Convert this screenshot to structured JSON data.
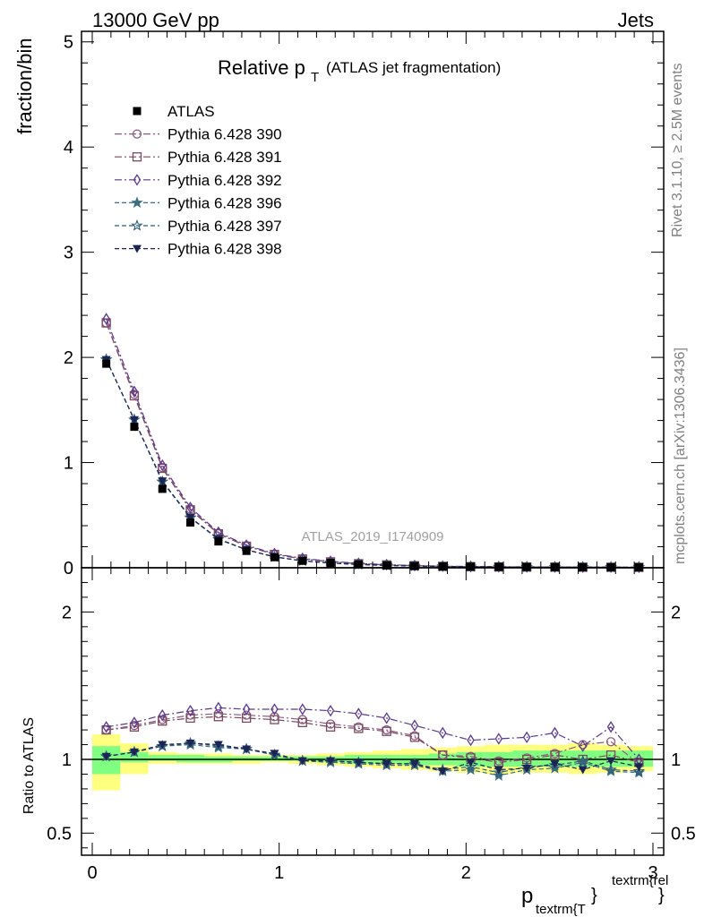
{
  "header": {
    "left": "13000 GeV pp",
    "right": "Jets"
  },
  "side_text": {
    "rivet": "Rivet 3.1.10, ≥ 2.5M events",
    "mcplots": "mcplots.cern.ch [arXiv:1306.3436]"
  },
  "chart_data": {
    "type": "line",
    "title": "Relative p",
    "title_sub": "T",
    "title_suffix": "(ATLAS jet fragmentation)",
    "analysis_id": "ATLAS_2019_I1740909",
    "ylabel": "fraction/bin",
    "ratio_ylabel": "Ratio to ATLAS",
    "xlabel_main": "p",
    "xlabel_sub": "textrm{T",
    "xlabel_brace": "}",
    "xlabel_sup": "textrm{rel",
    "xlabel_close": "}",
    "xlim": [
      0,
      3
    ],
    "ylim": [
      0,
      5.1
    ],
    "ratio_ylim": [
      0.35,
      2.3
    ],
    "x_ticks": [
      "0",
      "1",
      "2",
      "3"
    ],
    "y_ticks": [
      "0",
      "1",
      "2",
      "3",
      "4",
      "5"
    ],
    "ratio_ticks": [
      "0.5",
      "1",
      "2"
    ],
    "ratio_tick_values": [
      0.5,
      1,
      2
    ],
    "x": [
      0.075,
      0.225,
      0.375,
      0.525,
      0.675,
      0.825,
      0.975,
      1.125,
      1.275,
      1.425,
      1.575,
      1.725,
      1.875,
      2.025,
      2.175,
      2.325,
      2.475,
      2.625,
      2.775,
      2.925
    ],
    "series": [
      {
        "name": "ATLAS",
        "marker": "filled-square",
        "color": "#000000",
        "dash": "none",
        "values": [
          1.94,
          1.34,
          0.75,
          0.43,
          0.25,
          0.16,
          0.1,
          0.066,
          0.046,
          0.032,
          0.023,
          0.017,
          0.013,
          0.0105,
          0.0085,
          0.0072,
          0.0062,
          0.0055,
          0.005,
          0.0046
        ],
        "ratio": [
          1,
          1,
          1,
          1,
          1,
          1,
          1,
          1,
          1,
          1,
          1,
          1,
          1,
          1,
          1,
          1,
          1,
          1,
          1,
          1
        ]
      },
      {
        "name": "Pythia 6.428 390",
        "marker": "open-circle",
        "color": "#8b5a83",
        "dash": "8,3,2,3",
        "ratio": [
          1.2,
          1.23,
          1.27,
          1.3,
          1.31,
          1.3,
          1.29,
          1.27,
          1.24,
          1.22,
          1.2,
          1.16,
          1.03,
          1.02,
          0.99,
          1.01,
          1.04,
          1.1,
          1.12,
          0.97
        ]
      },
      {
        "name": "Pythia 6.428 391",
        "marker": "open-square",
        "color": "#7a4a5f",
        "dash": "8,3,2,3",
        "ratio": [
          1.2,
          1.22,
          1.26,
          1.28,
          1.29,
          1.28,
          1.27,
          1.25,
          1.22,
          1.21,
          1.19,
          1.15,
          1.03,
          1.01,
          0.98,
          1.0,
          1.03,
          1.0,
          1.03,
          0.98
        ]
      },
      {
        "name": "Pythia 6.428 392",
        "marker": "open-diamond",
        "color": "#5b3a8b",
        "dash": "8,3,2,3",
        "ratio": [
          1.22,
          1.25,
          1.3,
          1.33,
          1.35,
          1.34,
          1.34,
          1.34,
          1.33,
          1.31,
          1.28,
          1.23,
          1.18,
          1.13,
          1.14,
          1.15,
          1.18,
          1.09,
          1.22,
          1.0
        ]
      },
      {
        "name": "Pythia 6.428 396",
        "marker": "filled-star",
        "color": "#3e6f80",
        "dash": "5,3",
        "ratio": [
          1.02,
          1.05,
          1.09,
          1.1,
          1.08,
          1.07,
          1.03,
          0.99,
          0.98,
          0.97,
          0.96,
          0.96,
          0.92,
          0.93,
          0.89,
          0.93,
          0.94,
          0.98,
          0.92,
          0.91
        ]
      },
      {
        "name": "Pythia 6.428 397",
        "marker": "open-star",
        "color": "#2f5c78",
        "dash": "5,3",
        "ratio": [
          1.02,
          1.05,
          1.09,
          1.11,
          1.09,
          1.07,
          1.03,
          0.99,
          0.99,
          0.98,
          0.97,
          0.97,
          0.93,
          0.95,
          0.91,
          0.95,
          0.96,
          0.99,
          0.93,
          0.92
        ]
      },
      {
        "name": "Pythia 6.428 398",
        "marker": "filled-triangle-down",
        "color": "#1c2454",
        "dash": "5,3",
        "ratio": [
          1.02,
          1.05,
          1.1,
          1.11,
          1.1,
          1.07,
          1.04,
          0.99,
          0.99,
          0.98,
          0.97,
          0.97,
          0.92,
          0.98,
          0.93,
          0.94,
          0.97,
          0.93,
          0.99,
          0.95
        ]
      }
    ],
    "bands": {
      "green_color": "#80ff80",
      "yellow_color": "#ffff80",
      "green": [
        [
          0.9,
          1.09
        ],
        [
          0.98,
          1.05
        ],
        [
          0.99,
          1.03
        ],
        [
          0.98,
          1.03
        ],
        [
          0.98,
          1.02
        ],
        [
          0.99,
          1.02
        ],
        [
          0.99,
          1.02
        ],
        [
          0.99,
          1.02
        ],
        [
          0.98,
          1.02
        ],
        [
          0.97,
          1.03
        ],
        [
          0.97,
          1.03
        ],
        [
          0.96,
          1.03
        ],
        [
          0.96,
          1.04
        ],
        [
          0.95,
          1.05
        ],
        [
          0.95,
          1.05
        ],
        [
          0.95,
          1.06
        ],
        [
          0.95,
          1.06
        ],
        [
          0.95,
          1.06
        ],
        [
          0.95,
          1.06
        ],
        [
          0.95,
          1.06
        ]
      ],
      "yellow": [
        [
          0.79,
          1.17
        ],
        [
          0.9,
          1.11
        ],
        [
          0.97,
          1.05
        ],
        [
          0.97,
          1.04
        ],
        [
          0.97,
          1.04
        ],
        [
          0.97,
          1.03
        ],
        [
          0.98,
          1.03
        ],
        [
          0.97,
          1.03
        ],
        [
          0.96,
          1.04
        ],
        [
          0.95,
          1.05
        ],
        [
          0.94,
          1.06
        ],
        [
          0.93,
          1.07
        ],
        [
          0.92,
          1.08
        ],
        [
          0.91,
          1.09
        ],
        [
          0.9,
          1.1
        ],
        [
          0.91,
          1.1
        ],
        [
          0.91,
          1.1
        ],
        [
          0.9,
          1.11
        ],
        [
          0.91,
          1.1
        ],
        [
          0.92,
          1.09
        ]
      ]
    }
  }
}
